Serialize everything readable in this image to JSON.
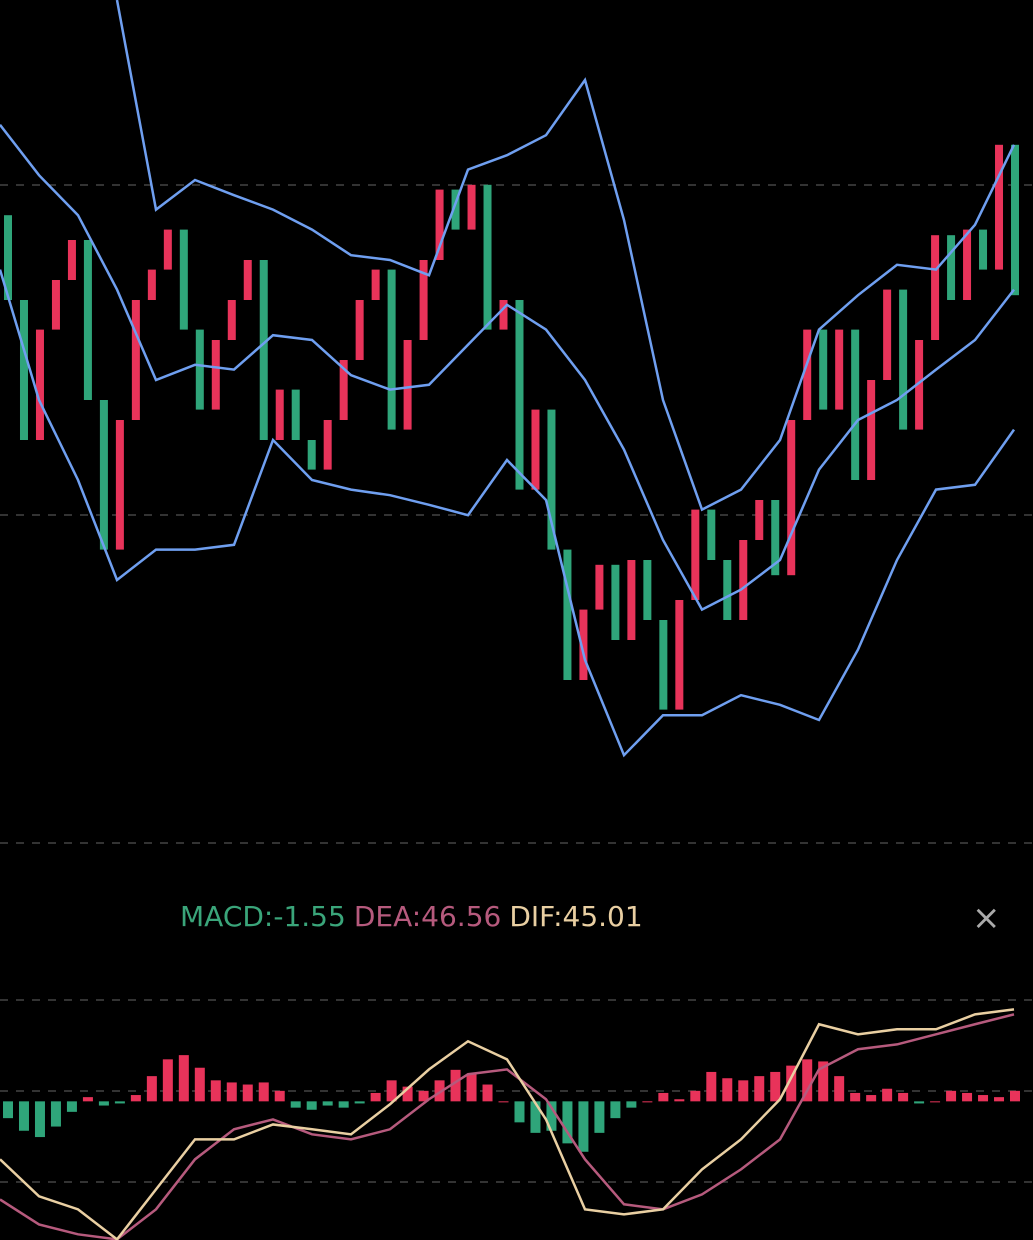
{
  "legend": {
    "macd": "MACD:-1.55",
    "dea": "DEA:46.56",
    "dif": "DIF:45.01"
  },
  "close_icon": "×",
  "price_chart": {
    "type": "candlestick",
    "ylim": [
      0,
      100
    ],
    "up_color": "#e8335a",
    "down_color": "#2fa57a",
    "open": [
      73.1,
      62.5,
      45,
      58.8,
      65,
      70,
      50,
      31.3,
      47.5,
      62.5,
      66.3,
      71.3,
      58.8,
      48.8,
      57.5,
      62.5,
      67.5,
      45,
      51.3,
      45,
      41.3,
      47.5,
      55,
      62.5,
      66.3,
      46.3,
      57.5,
      67.5,
      76.3,
      71.3,
      76.9,
      58.8,
      62.5,
      38.8,
      48.8,
      31.3,
      15,
      23.8,
      29.4,
      20,
      30,
      22.5,
      11.3,
      25,
      36.3,
      30,
      22.5,
      32.5,
      37.5,
      28.1,
      47.5,
      58.8,
      48.8,
      58.8,
      40,
      52.5,
      63.8,
      46.3,
      57.5,
      70.6,
      62.5,
      71.3,
      66.3,
      81.9
    ],
    "close": [
      62.5,
      45,
      58.8,
      65,
      70,
      50,
      31.3,
      47.5,
      62.5,
      66.3,
      71.3,
      58.8,
      48.8,
      57.5,
      62.5,
      67.5,
      45,
      51.3,
      45,
      41.3,
      47.5,
      55,
      62.5,
      66.3,
      46.3,
      57.5,
      67.5,
      76.3,
      71.3,
      76.9,
      58.8,
      62.5,
      38.8,
      48.8,
      31.3,
      15,
      23.8,
      29.4,
      20,
      30,
      22.5,
      11.3,
      25,
      36.3,
      30,
      22.5,
      32.5,
      37.5,
      28.1,
      47.5,
      58.8,
      48.8,
      58.8,
      40,
      52.5,
      63.8,
      46.3,
      57.5,
      70.6,
      62.5,
      71.3,
      66.3,
      81.9,
      63.1
    ],
    "upper_band": {
      "color": "#6f9ff0",
      "values": [
        null,
        null,
        null,
        100,
        73.8,
        77.5,
        75.6,
        73.8,
        71.3,
        68.1,
        67.5,
        65.6,
        78.8,
        80.6,
        83.1,
        90,
        72.5,
        50,
        36.3,
        38.8,
        45,
        58.8,
        63.1,
        66.9,
        66.3,
        71.9,
        81.9
      ]
    },
    "middle_band": {
      "color": "#6f9ff0",
      "values": [
        84.4,
        78.1,
        73.1,
        63.8,
        52.5,
        54.4,
        53.8,
        58.1,
        57.5,
        53.1,
        51.3,
        51.9,
        56.9,
        61.9,
        58.8,
        52.5,
        43.8,
        32.5,
        23.8,
        26.3,
        30,
        41.3,
        47.5,
        50,
        53.8,
        57.5,
        63.8
      ]
    },
    "lower_band": {
      "color": "#6f9ff0",
      "values": [
        66.3,
        50,
        40,
        27.5,
        31.3,
        31.3,
        31.9,
        45,
        40,
        38.8,
        38.1,
        36.9,
        35.6,
        42.5,
        37.5,
        17.5,
        5.6,
        10.6,
        10.6,
        13.1,
        11.9,
        10,
        18.8,
        30,
        38.8,
        39.4,
        46.3
      ]
    }
  },
  "macd_chart": {
    "type": "histogram",
    "ylim": [
      -66,
      53
    ],
    "up_color": "#e8335a",
    "down_color": "#2fa57a",
    "histogram": [
      -8,
      -14,
      -17,
      -12,
      -5,
      2,
      -2,
      -1,
      3,
      12,
      20,
      22,
      16,
      10,
      9,
      8,
      9,
      5,
      -3,
      -4,
      -2,
      -3,
      -1,
      4,
      10,
      7,
      5,
      10,
      15,
      13,
      8,
      0,
      -10,
      -15,
      -14,
      -20,
      -24,
      -15,
      -8,
      -3,
      0,
      4,
      1,
      5,
      14,
      11,
      10,
      12,
      14,
      17,
      20,
      19,
      12,
      4,
      3,
      6,
      4,
      -1,
      0,
      5,
      4,
      3,
      2,
      5
    ],
    "dif": {
      "color": "#e9cfa2",
      "values": [
        -27.6,
        -45.2,
        -51.4,
        -65.7,
        -41.9,
        -18.1,
        -18.1,
        -11,
        -13.3,
        -15.7,
        -1.4,
        15.2,
        28.6,
        20,
        -8.6,
        -51.4,
        -53.8,
        -51.4,
        -32.4,
        -18.1,
        1,
        36.7,
        31.9,
        34.3,
        34.3,
        41.4,
        43.8
      ]
    },
    "dea": {
      "color": "#b65a7d",
      "values": [
        -46.7,
        -58.6,
        -63.3,
        -65.7,
        -51.4,
        -27.6,
        -13.3,
        -8.6,
        -15.7,
        -18.1,
        -13.3,
        1,
        12.9,
        15.2,
        1,
        -27.6,
        -49,
        -51.4,
        -44.3,
        -32.4,
        -18.1,
        15.2,
        24.8,
        27.1,
        31.9,
        36.7,
        41.4
      ]
    }
  }
}
